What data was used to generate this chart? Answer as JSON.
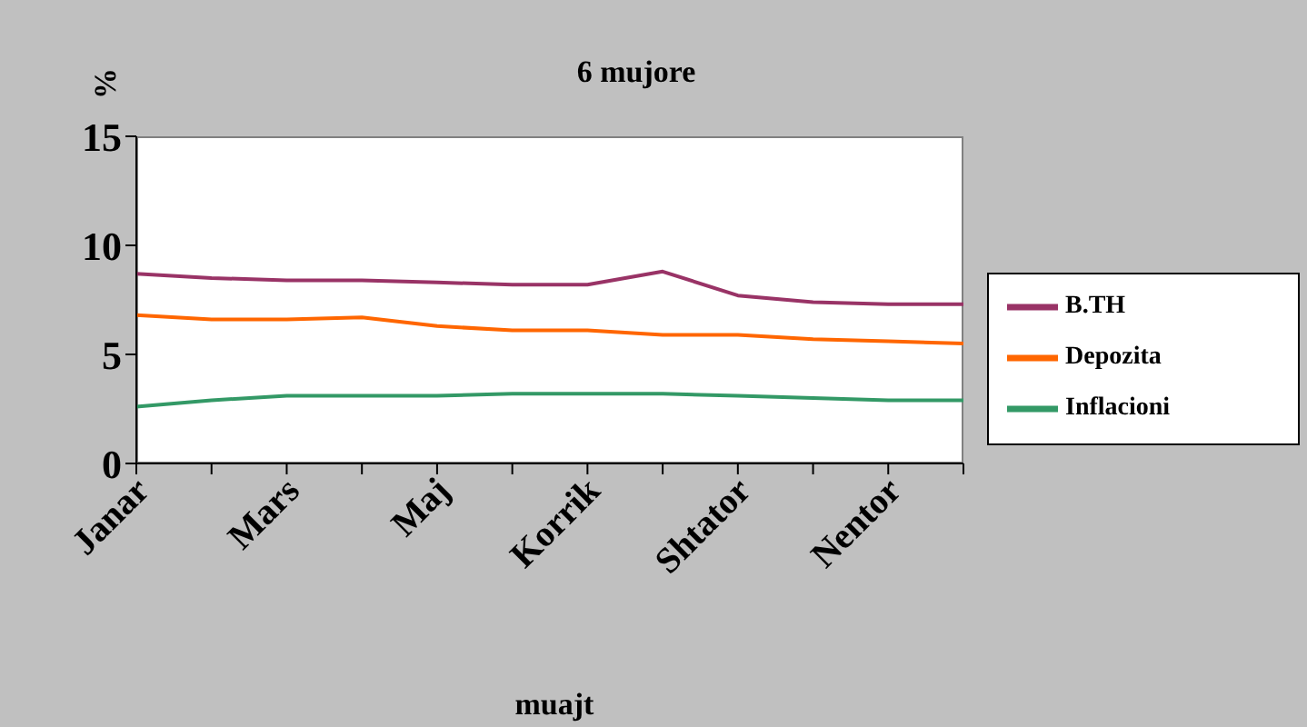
{
  "chart_data": {
    "type": "line",
    "title": "6 mujore",
    "xlabel": "muajt",
    "ylabel": "%",
    "categories": [
      "Janar",
      null,
      "Mars",
      null,
      "Maj",
      null,
      "Korrik",
      null,
      "Shtator",
      null,
      "Nentor",
      null
    ],
    "series": [
      {
        "name": "B.TH",
        "color": "#993366",
        "values": [
          8.7,
          8.5,
          8.4,
          8.4,
          8.3,
          8.2,
          8.2,
          8.8,
          7.7,
          7.4,
          7.3,
          7.3
        ]
      },
      {
        "name": "Depozita",
        "color": "#ff6600",
        "values": [
          6.8,
          6.6,
          6.6,
          6.7,
          6.3,
          6.1,
          6.1,
          5.9,
          5.9,
          5.7,
          5.6,
          5.5
        ]
      },
      {
        "name": "Inflacioni",
        "color": "#339966",
        "values": [
          2.6,
          2.9,
          3.1,
          3.1,
          3.1,
          3.2,
          3.2,
          3.2,
          3.1,
          3.0,
          2.9,
          2.9
        ]
      }
    ],
    "ylim": [
      0,
      15
    ],
    "yticks": [
      0,
      5,
      10,
      15
    ],
    "grid": false,
    "legend": "right",
    "marker": "none",
    "line_style": "solid"
  }
}
